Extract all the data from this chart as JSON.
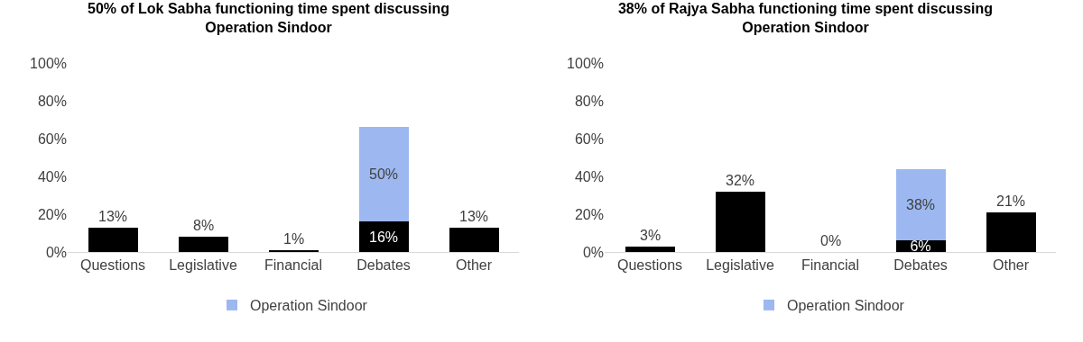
{
  "chart_data": [
    {
      "type": "bar",
      "title": "50% of Lok Sabha functioning time spent discussing\nOperation Sindoor",
      "categories": [
        "Questions",
        "Legislative",
        "Financial",
        "Debates",
        "Other"
      ],
      "stacked": true,
      "series": [
        {
          "color": "#000000",
          "values": [
            13,
            8,
            1,
            16,
            13
          ],
          "value_labels": [
            "13%",
            "8%",
            "1%",
            "16%",
            "13%"
          ]
        },
        {
          "name": "Operation Sindoor",
          "color": "#9db8f0",
          "values": [
            null,
            null,
            null,
            50,
            null
          ],
          "value_labels": [
            null,
            null,
            null,
            "50%",
            null
          ]
        }
      ],
      "ylim": [
        0,
        100
      ],
      "yticks": [
        {
          "value": 0,
          "label": "0%"
        },
        {
          "value": 20,
          "label": "20%"
        },
        {
          "value": 40,
          "label": "40%"
        },
        {
          "value": 60,
          "label": "60%"
        },
        {
          "value": 80,
          "label": "80%"
        },
        {
          "value": 100,
          "label": "100%"
        }
      ],
      "grid": false,
      "legend": "bottom"
    },
    {
      "type": "bar",
      "title": "38% of Rajya Sabha functioning time spent discussing\nOperation Sindoor",
      "categories": [
        "Questions",
        "Legislative",
        "Financial",
        "Debates",
        "Other"
      ],
      "stacked": true,
      "series": [
        {
          "color": "#000000",
          "values": [
            3,
            32,
            0,
            6,
            21
          ],
          "value_labels": [
            "3%",
            "32%",
            "0%",
            "6%",
            "21%"
          ]
        },
        {
          "name": "Operation Sindoor",
          "color": "#9db8f0",
          "values": [
            null,
            null,
            null,
            38,
            null
          ],
          "value_labels": [
            null,
            null,
            null,
            "38%",
            null
          ]
        }
      ],
      "ylim": [
        0,
        100
      ],
      "yticks": [
        {
          "value": 0,
          "label": "0%"
        },
        {
          "value": 20,
          "label": "20%"
        },
        {
          "value": 40,
          "label": "40%"
        },
        {
          "value": 60,
          "label": "60%"
        },
        {
          "value": 80,
          "label": "80%"
        },
        {
          "value": 100,
          "label": "100%"
        }
      ],
      "grid": false,
      "legend": "bottom"
    }
  ]
}
